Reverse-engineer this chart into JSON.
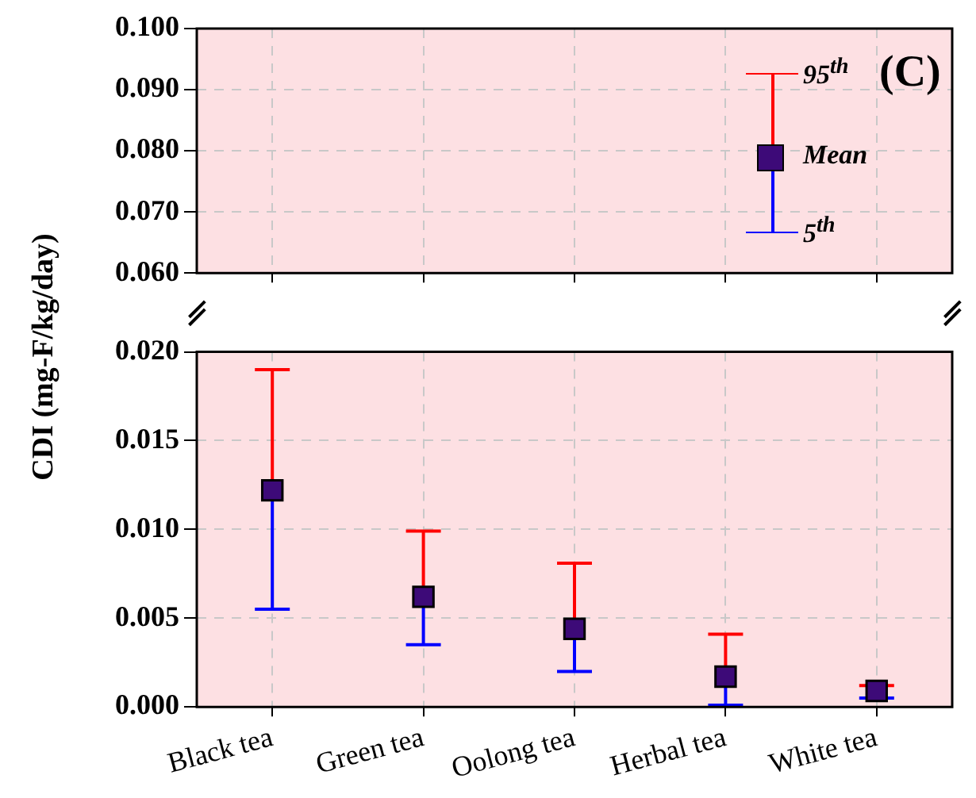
{
  "chart_data": [
    {
      "type": "scatter",
      "categories": [
        null,
        null,
        null,
        null,
        null
      ],
      "values": [
        null,
        null,
        null,
        null,
        null
      ],
      "ylim": [
        0.06,
        0.1
      ],
      "yticks": [
        {
          "value": 0.06,
          "label": "0.060"
        },
        {
          "value": 0.07,
          "label": "0.070"
        },
        {
          "value": 0.08,
          "label": "0.080"
        },
        {
          "value": 0.09,
          "label": "0.090"
        },
        {
          "value": 0.1,
          "label": "0.100"
        }
      ],
      "grid": true,
      "annotations": [
        "95$^{th}$",
        "Mean",
        "5$^{th}$",
        "(C)"
      ]
    },
    {
      "type": "scatter",
      "categories": [
        "Black tea",
        "Green tea",
        "Oolong tea",
        "Herbal tea",
        "White tea"
      ],
      "ylabel": "CDI (mg-F/kg/day)",
      "series": [
        {
          "color": "#3d0a78",
          "values": [
            0.0122,
            0.0062,
            0.0044,
            0.0017,
            0.0009
          ],
          "errors": [
            [
              0.0055,
              0.019
            ],
            [
              0.0035,
              0.0099
            ],
            [
              0.002,
              0.0081
            ],
            [
              0.0001,
              0.0041
            ],
            [
              0.0005,
              0.0012
            ]
          ]
        }
      ],
      "ylim": [
        0,
        0.02
      ],
      "yticks": [
        {
          "value": 0,
          "label": "0.000"
        },
        {
          "value": 0.005,
          "label": "0.005"
        },
        {
          "value": 0.01,
          "label": "0.010"
        },
        {
          "value": 0.015,
          "label": "0.015"
        },
        {
          "value": 0.02,
          "label": "0.020"
        }
      ],
      "grid": true,
      "marker": "square"
    }
  ]
}
